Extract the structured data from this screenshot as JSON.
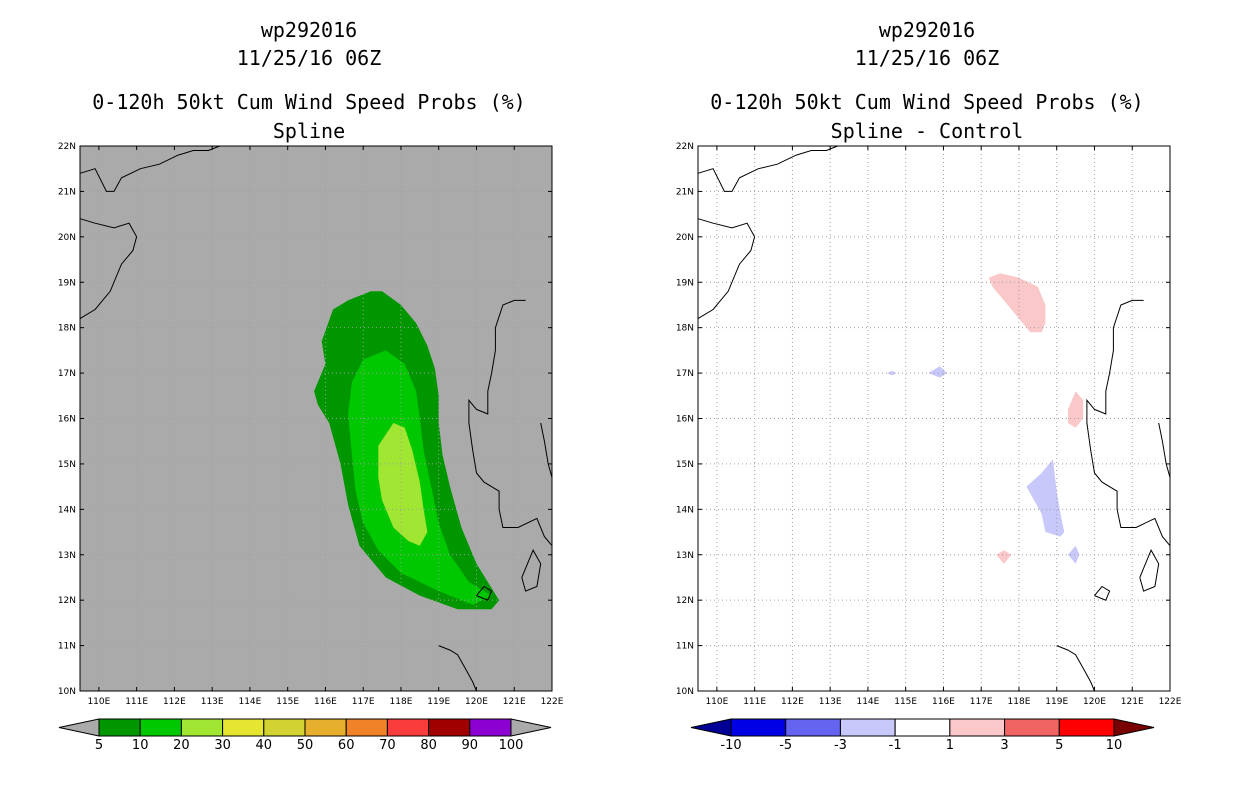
{
  "chart_data": [
    {
      "type": "contour_map",
      "storm_id": "wp292016",
      "datetime": "11/25/16 06Z",
      "title": "0-120h 50kt Cum Wind Speed Probs (%)",
      "subtitle": "Spline",
      "background": "#aaaaaa",
      "xlim": [
        109.5,
        122
      ],
      "ylim": [
        10,
        22
      ],
      "x_ticks": [
        110,
        111,
        112,
        113,
        114,
        115,
        116,
        117,
        118,
        119,
        120,
        121,
        122
      ],
      "y_ticks": [
        10,
        11,
        12,
        13,
        14,
        15,
        16,
        17,
        18,
        19,
        20,
        21,
        22
      ],
      "x_tick_labels": [
        "110E",
        "111E",
        "112E",
        "113E",
        "114E",
        "115E",
        "116E",
        "117E",
        "118E",
        "119E",
        "120E",
        "121E",
        "122E"
      ],
      "y_tick_labels": [
        "10N",
        "11N",
        "12N",
        "13N",
        "14N",
        "15N",
        "16N",
        "17N",
        "18N",
        "19N",
        "20N",
        "21N",
        "22N"
      ],
      "colorbar": {
        "labels": [
          "5",
          "10",
          "20",
          "30",
          "40",
          "50",
          "60",
          "70",
          "80",
          "90",
          "100"
        ],
        "colors": [
          "#009600",
          "#00c800",
          "#a0e632",
          "#e6e632",
          "#d2d232",
          "#e6af2d",
          "#f08228",
          "#fa3c3c",
          "#a00000",
          "#8c00d2"
        ],
        "end_color": "#aaaaaa"
      },
      "contours": [
        {
          "level": 5,
          "color": "#009600",
          "points": [
            [
              115.7,
              16.6
            ],
            [
              116.0,
              17.2
            ],
            [
              115.9,
              17.7
            ],
            [
              116.2,
              18.4
            ],
            [
              116.6,
              18.6
            ],
            [
              117.2,
              18.8
            ],
            [
              117.5,
              18.8
            ],
            [
              118.0,
              18.5
            ],
            [
              118.4,
              18.1
            ],
            [
              118.7,
              17.6
            ],
            [
              118.9,
              17.1
            ],
            [
              119.0,
              16.5
            ],
            [
              119.0,
              15.9
            ],
            [
              119.1,
              15.2
            ],
            [
              119.3,
              14.5
            ],
            [
              119.6,
              13.6
            ],
            [
              120.0,
              12.8
            ],
            [
              120.3,
              12.4
            ],
            [
              120.6,
              12.0
            ],
            [
              120.4,
              11.8
            ],
            [
              119.5,
              11.8
            ],
            [
              118.5,
              12.1
            ],
            [
              117.6,
              12.5
            ],
            [
              116.9,
              13.2
            ],
            [
              116.6,
              14.1
            ],
            [
              116.4,
              15.0
            ],
            [
              116.1,
              15.9
            ],
            [
              115.8,
              16.3
            ],
            [
              115.7,
              16.6
            ]
          ]
        },
        {
          "level": 10,
          "color": "#00c800",
          "points": [
            [
              116.6,
              16.1
            ],
            [
              116.7,
              16.8
            ],
            [
              117.0,
              17.3
            ],
            [
              117.6,
              17.5
            ],
            [
              118.1,
              17.2
            ],
            [
              118.4,
              16.6
            ],
            [
              118.5,
              16.0
            ],
            [
              118.6,
              15.3
            ],
            [
              118.8,
              14.5
            ],
            [
              119.0,
              13.7
            ],
            [
              119.3,
              13.0
            ],
            [
              119.8,
              12.4
            ],
            [
              120.4,
              12.1
            ],
            [
              119.9,
              11.9
            ],
            [
              119.0,
              12.2
            ],
            [
              118.0,
              12.6
            ],
            [
              117.4,
              13.1
            ],
            [
              117.0,
              13.7
            ],
            [
              116.8,
              14.4
            ],
            [
              116.7,
              15.2
            ],
            [
              116.6,
              16.1
            ]
          ]
        },
        {
          "level": 20,
          "color": "#a0e632",
          "points": [
            [
              117.4,
              14.7
            ],
            [
              117.4,
              15.4
            ],
            [
              117.8,
              15.9
            ],
            [
              118.1,
              15.8
            ],
            [
              118.3,
              15.3
            ],
            [
              118.5,
              14.6
            ],
            [
              118.6,
              14.0
            ],
            [
              118.7,
              13.5
            ],
            [
              118.5,
              13.2
            ],
            [
              118.2,
              13.3
            ],
            [
              117.8,
              13.6
            ],
            [
              117.5,
              14.2
            ],
            [
              117.4,
              14.7
            ]
          ]
        }
      ]
    },
    {
      "type": "contour_map",
      "storm_id": "wp292016",
      "datetime": "11/25/16 06Z",
      "title": "0-120h 50kt Cum Wind Speed Probs (%)",
      "subtitle": "Spline - Control",
      "background": "#ffffff",
      "xlim": [
        109.5,
        122
      ],
      "ylim": [
        10,
        22
      ],
      "x_ticks": [
        110,
        111,
        112,
        113,
        114,
        115,
        116,
        117,
        118,
        119,
        120,
        121,
        122
      ],
      "y_ticks": [
        10,
        11,
        12,
        13,
        14,
        15,
        16,
        17,
        18,
        19,
        20,
        21,
        22
      ],
      "x_tick_labels": [
        "110E",
        "111E",
        "112E",
        "113E",
        "114E",
        "115E",
        "116E",
        "117E",
        "118E",
        "119E",
        "120E",
        "121E",
        "122E"
      ],
      "y_tick_labels": [
        "10N",
        "11N",
        "12N",
        "13N",
        "14N",
        "15N",
        "16N",
        "17N",
        "18N",
        "19N",
        "20N",
        "21N",
        "22N"
      ],
      "colorbar": {
        "labels": [
          "-10",
          "-5",
          "-3",
          "-1",
          "1",
          "3",
          "5",
          "10"
        ],
        "colors": [
          "#0000e6",
          "#6464f0",
          "#c8c8fa",
          "#ffffff",
          "#fac8c8",
          "#f06464",
          "#ff0000"
        ],
        "end_colors": [
          "#000096",
          "#780000"
        ]
      },
      "contours": [
        {
          "level": 1,
          "color": "#fac8c8",
          "points": [
            [
              117.2,
              19.1
            ],
            [
              117.5,
              19.2
            ],
            [
              118.0,
              19.1
            ],
            [
              118.5,
              18.9
            ],
            [
              118.7,
              18.5
            ],
            [
              118.7,
              18.1
            ],
            [
              118.6,
              17.9
            ],
            [
              118.3,
              17.9
            ],
            [
              118.0,
              18.2
            ],
            [
              117.6,
              18.6
            ],
            [
              117.3,
              18.9
            ]
          ]
        },
        {
          "level": -1,
          "color": "#c8c8fa",
          "points": [
            [
              114.5,
              17.0
            ],
            [
              114.65,
              17.05
            ],
            [
              114.75,
              17.0
            ],
            [
              114.65,
              16.95
            ]
          ]
        },
        {
          "level": -1,
          "color": "#c8c8fa",
          "points": [
            [
              115.6,
              17.0
            ],
            [
              115.9,
              17.15
            ],
            [
              116.1,
              17.0
            ],
            [
              115.9,
              16.9
            ]
          ]
        },
        {
          "level": 1,
          "color": "#fac8c8",
          "points": [
            [
              119.3,
              16.2
            ],
            [
              119.5,
              16.6
            ],
            [
              119.7,
              16.4
            ],
            [
              119.7,
              16.0
            ],
            [
              119.5,
              15.8
            ],
            [
              119.3,
              15.9
            ]
          ]
        },
        {
          "level": -1,
          "color": "#c8c8fa",
          "points": [
            [
              118.2,
              14.5
            ],
            [
              118.6,
              14.8
            ],
            [
              118.9,
              15.1
            ],
            [
              119.0,
              14.4
            ],
            [
              119.1,
              13.9
            ],
            [
              119.2,
              13.5
            ],
            [
              119.1,
              13.4
            ],
            [
              118.7,
              13.5
            ],
            [
              118.6,
              13.9
            ],
            [
              118.4,
              14.2
            ]
          ]
        },
        {
          "level": 1,
          "color": "#fac8c8",
          "points": [
            [
              117.4,
              13.0
            ],
            [
              117.6,
              13.1
            ],
            [
              117.8,
              13.0
            ],
            [
              117.6,
              12.8
            ]
          ]
        },
        {
          "level": -1,
          "color": "#c8c8fa",
          "points": [
            [
              119.3,
              13.0
            ],
            [
              119.5,
              13.2
            ],
            [
              119.6,
              13.0
            ],
            [
              119.5,
              12.8
            ]
          ]
        }
      ]
    }
  ]
}
